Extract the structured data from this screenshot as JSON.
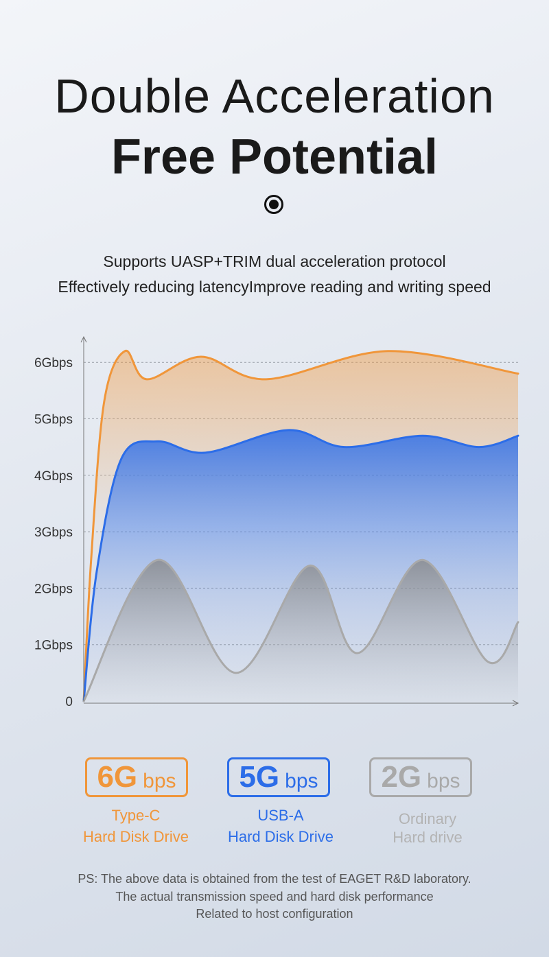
{
  "header": {
    "title_line1": "Double Acceleration",
    "title_line2": "Free Potential",
    "subtitle_line1": "Supports UASP+TRIM dual acceleration protocol",
    "subtitle_line2": "Effectively reducing latencyImprove reading and writing speed"
  },
  "chart_data": {
    "type": "area",
    "ylim": [
      0,
      6.6
    ],
    "yticks": [
      {
        "value": 0,
        "label": "0"
      },
      {
        "value": 1,
        "label": "1Gbps"
      },
      {
        "value": 2,
        "label": "2Gbps"
      },
      {
        "value": 3,
        "label": "3Gbps"
      },
      {
        "value": 4,
        "label": "4Gbps"
      },
      {
        "value": 5,
        "label": "5Gbps"
      },
      {
        "value": 6,
        "label": "6Gbps"
      }
    ],
    "grid": true,
    "xlim": [
      0,
      1
    ],
    "series": [
      {
        "color": "#f0963a",
        "points": [
          [
            0,
            0
          ],
          [
            0.017,
            2.5
          ],
          [
            0.047,
            5.3
          ],
          [
            0.095,
            6.2
          ],
          [
            0.145,
            5.7
          ],
          [
            0.27,
            6.1
          ],
          [
            0.42,
            5.7
          ],
          [
            0.7,
            6.2
          ],
          [
            1.0,
            5.8
          ]
        ]
      },
      {
        "color": "#2c6de8",
        "points": [
          [
            0,
            0
          ],
          [
            0.03,
            2.3
          ],
          [
            0.087,
            4.3
          ],
          [
            0.17,
            4.6
          ],
          [
            0.28,
            4.4
          ],
          [
            0.47,
            4.8
          ],
          [
            0.6,
            4.5
          ],
          [
            0.78,
            4.7
          ],
          [
            0.91,
            4.5
          ],
          [
            1.0,
            4.7
          ]
        ]
      },
      {
        "color": "#a9a9a9",
        "points": [
          [
            0,
            0
          ],
          [
            0.17,
            2.5
          ],
          [
            0.35,
            0.5
          ],
          [
            0.52,
            2.4
          ],
          [
            0.63,
            0.85
          ],
          [
            0.78,
            2.5
          ],
          [
            0.93,
            0.7
          ],
          [
            1.0,
            1.4
          ]
        ]
      }
    ]
  },
  "badges": [
    {
      "value": "6G",
      "unit": "bps",
      "caption_line1": "Type-C",
      "caption_line2": "Hard Disk Drive",
      "color": "#f0963a"
    },
    {
      "value": "5G",
      "unit": "bps",
      "caption_line1": "USB-A",
      "caption_line2": "Hard Disk Drive",
      "color": "#2c6de8"
    },
    {
      "value": "2G",
      "unit": "bps",
      "caption_line1": "Ordinary",
      "caption_line2": "Hard drive",
      "color": "#a9a9a9"
    }
  ],
  "footnote": {
    "line1": "PS: The above data is obtained from the test of EAGET R&D laboratory.",
    "line2": "The actual transmission speed and hard disk performance",
    "line3": "Related to host configuration"
  }
}
